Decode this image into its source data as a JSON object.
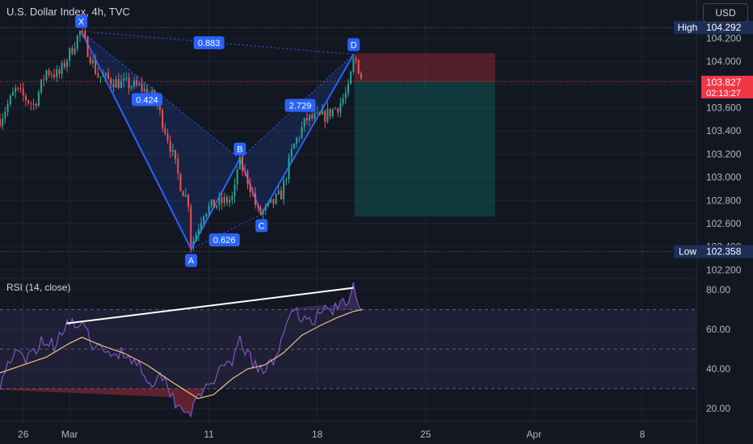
{
  "header": {
    "title": "U.S. Dollar Index, 4h, TVC"
  },
  "currency": {
    "label": "USD"
  },
  "rsi_label": "RSI (14, close)",
  "colors": {
    "background": "#131722",
    "bull": "#26a69a",
    "bear": "#ef5350",
    "pattern_line": "#2962ff",
    "pattern_fill": "#2962ff",
    "rsi_line": "#7e57c2",
    "rsi_ma": "#f0c28c",
    "price_badge": "#f23645",
    "high_low_badge": "#1e2f56"
  },
  "chart_data": [
    {
      "type": "candlestick",
      "title": "U.S. Dollar Index, 4h, TVC",
      "ylim": [
        102.15,
        104.35
      ],
      "y_ticks": [
        "104.200",
        "104.000",
        "103.800",
        "103.600",
        "103.400",
        "103.200",
        "103.000",
        "102.800",
        "102.600",
        "102.400",
        "102.200"
      ],
      "x_ticks": [
        "26",
        "Mar",
        "11",
        "18",
        "25",
        "Apr",
        "8"
      ],
      "x_tick_positions": [
        -3,
        0,
        9,
        16,
        23,
        30,
        37
      ],
      "x_range": [
        -4.5,
        40.5
      ],
      "key_points": [
        {
          "t": -4.5,
          "p": 103.5
        },
        {
          "t": -3.5,
          "p": 103.75
        },
        {
          "t": -2.3,
          "p": 103.62
        },
        {
          "t": -1.5,
          "p": 103.92
        },
        {
          "t": -0.7,
          "p": 103.88
        },
        {
          "t": 0.7,
          "p": 104.26
        },
        {
          "t": 1.8,
          "p": 103.88
        },
        {
          "t": 3.0,
          "p": 103.82
        },
        {
          "t": 4.5,
          "p": 103.78
        },
        {
          "t": 5.5,
          "p": 103.68
        },
        {
          "t": 6.4,
          "p": 103.32
        },
        {
          "t": 7.2,
          "p": 102.92
        },
        {
          "t": 7.7,
          "p": 102.78
        },
        {
          "t": 7.85,
          "p": 102.4
        },
        {
          "t": 8.7,
          "p": 102.72
        },
        {
          "t": 9.7,
          "p": 102.78
        },
        {
          "t": 10.6,
          "p": 102.82
        },
        {
          "t": 10.9,
          "p": 103.15
        },
        {
          "t": 11.6,
          "p": 102.95
        },
        {
          "t": 12.2,
          "p": 102.68
        },
        {
          "t": 12.7,
          "p": 102.72
        },
        {
          "t": 13.7,
          "p": 102.86
        },
        {
          "t": 14.4,
          "p": 103.25
        },
        {
          "t": 15.3,
          "p": 103.5
        },
        {
          "t": 16.4,
          "p": 103.52
        },
        {
          "t": 17.4,
          "p": 103.62
        },
        {
          "t": 18.0,
          "p": 103.75
        },
        {
          "t": 18.4,
          "p": 104.05
        },
        {
          "t": 18.9,
          "p": 103.84
        }
      ],
      "pattern": {
        "name": "bat",
        "points": [
          {
            "label": "X",
            "t": 0.75,
            "p": 104.26
          },
          {
            "label": "A",
            "t": 7.85,
            "p": 102.38
          },
          {
            "label": "B",
            "t": 11.0,
            "p": 103.16
          },
          {
            "label": "C",
            "t": 12.4,
            "p": 102.68
          },
          {
            "label": "D",
            "t": 18.35,
            "p": 104.06
          }
        ],
        "ratios": [
          {
            "label": "0.424",
            "t": 5.0,
            "p": 103.67
          },
          {
            "label": "0.626",
            "t": 10.0,
            "p": 102.46
          },
          {
            "label": "2.729",
            "t": 14.9,
            "p": 103.62
          },
          {
            "label": "0.883",
            "t": 9.0,
            "p": 104.16
          }
        ]
      },
      "position": {
        "t_start": 18.4,
        "t_end": 27.5,
        "stop": 104.07,
        "entry": 103.827,
        "target": 102.66
      },
      "current_price": {
        "value": "103.827",
        "countdown": "02:13:27"
      },
      "high": {
        "label": "High",
        "value": "104.292"
      },
      "low": {
        "label": "Low",
        "value": "102.358"
      }
    },
    {
      "type": "line",
      "title": "RSI (14, close)",
      "ylim": [
        15,
        86
      ],
      "y_ticks": [
        "80.00",
        "60.00",
        "40.00",
        "20.00"
      ],
      "bands": [
        30,
        50,
        70
      ],
      "series": [
        {
          "role": "rsi",
          "points": [
            {
              "t": -4.5,
              "v": 33
            },
            {
              "t": -3.7,
              "v": 48
            },
            {
              "t": -2.8,
              "v": 44
            },
            {
              "t": -1.8,
              "v": 55
            },
            {
              "t": -1.0,
              "v": 52
            },
            {
              "t": -0.5,
              "v": 60
            },
            {
              "t": -0.3,
              "v": 63
            },
            {
              "t": 0.7,
              "v": 62
            },
            {
              "t": 1.5,
              "v": 53
            },
            {
              "t": 2.3,
              "v": 47
            },
            {
              "t": 3.3,
              "v": 49
            },
            {
              "t": 4.3,
              "v": 44
            },
            {
              "t": 5.3,
              "v": 33
            },
            {
              "t": 6.0,
              "v": 37
            },
            {
              "t": 6.8,
              "v": 24
            },
            {
              "t": 7.3,
              "v": 20
            },
            {
              "t": 7.85,
              "v": 19
            },
            {
              "t": 8.4,
              "v": 25
            },
            {
              "t": 9.0,
              "v": 33
            },
            {
              "t": 9.7,
              "v": 38
            },
            {
              "t": 10.5,
              "v": 42
            },
            {
              "t": 11.0,
              "v": 55
            },
            {
              "t": 11.8,
              "v": 43
            },
            {
              "t": 12.5,
              "v": 38
            },
            {
              "t": 13.3,
              "v": 45
            },
            {
              "t": 14.0,
              "v": 65
            },
            {
              "t": 14.8,
              "v": 68
            },
            {
              "t": 15.6,
              "v": 64
            },
            {
              "t": 16.5,
              "v": 70
            },
            {
              "t": 17.3,
              "v": 71
            },
            {
              "t": 18.0,
              "v": 74
            },
            {
              "t": 18.35,
              "v": 82
            },
            {
              "t": 18.9,
              "v": 70
            }
          ]
        },
        {
          "role": "rsi_ma",
          "points": [
            {
              "t": -4.5,
              "v": 38
            },
            {
              "t": -3.0,
              "v": 42
            },
            {
              "t": -1.5,
              "v": 46
            },
            {
              "t": 0.0,
              "v": 53
            },
            {
              "t": 0.8,
              "v": 56
            },
            {
              "t": 2.0,
              "v": 52
            },
            {
              "t": 3.5,
              "v": 48
            },
            {
              "t": 5.0,
              "v": 42
            },
            {
              "t": 6.5,
              "v": 34
            },
            {
              "t": 7.5,
              "v": 29
            },
            {
              "t": 8.3,
              "v": 25
            },
            {
              "t": 9.3,
              "v": 27
            },
            {
              "t": 10.5,
              "v": 35
            },
            {
              "t": 11.5,
              "v": 40
            },
            {
              "t": 12.6,
              "v": 42
            },
            {
              "t": 13.8,
              "v": 48
            },
            {
              "t": 15.0,
              "v": 57
            },
            {
              "t": 16.2,
              "v": 62
            },
            {
              "t": 17.3,
              "v": 66
            },
            {
              "t": 18.3,
              "v": 69
            },
            {
              "t": 18.9,
              "v": 70
            }
          ]
        }
      ],
      "divergence_line": {
        "from": {
          "t": -0.2,
          "v": 63
        },
        "to": {
          "t": 18.35,
          "v": 81
        }
      }
    }
  ]
}
